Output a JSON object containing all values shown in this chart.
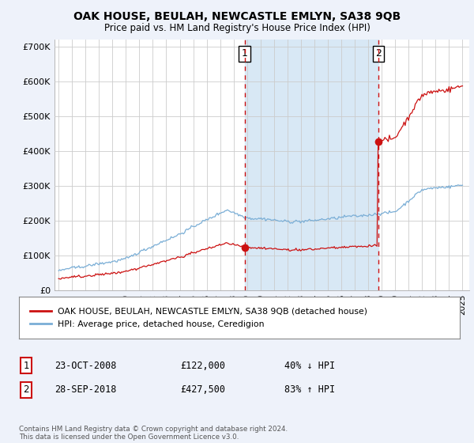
{
  "title": "OAK HOUSE, BEULAH, NEWCASTLE EMLYN, SA38 9QB",
  "subtitle": "Price paid vs. HM Land Registry's House Price Index (HPI)",
  "ylabel_ticks": [
    "£0",
    "£100K",
    "£200K",
    "£300K",
    "£400K",
    "£500K",
    "£600K",
    "£700K"
  ],
  "ytick_values": [
    0,
    100000,
    200000,
    300000,
    400000,
    500000,
    600000,
    700000
  ],
  "ylim": [
    0,
    720000
  ],
  "xlim_start": 1994.7,
  "xlim_end": 2025.5,
  "hpi_color": "#7aaed6",
  "price_color": "#cc1111",
  "vline_color": "#cc1111",
  "shade_color": "#d8e8f5",
  "marker1_date": 2008.81,
  "marker1_price": 122000,
  "marker2_date": 2018.75,
  "marker2_price": 427500,
  "legend_label1": "OAK HOUSE, BEULAH, NEWCASTLE EMLYN, SA38 9QB (detached house)",
  "legend_label2": "HPI: Average price, detached house, Ceredigion",
  "note1_num": "1",
  "note1_date": "23-OCT-2008",
  "note1_price": "£122,000",
  "note1_hpi": "40% ↓ HPI",
  "note2_num": "2",
  "note2_date": "28-SEP-2018",
  "note2_price": "£427,500",
  "note2_hpi": "83% ↑ HPI",
  "footer": "Contains HM Land Registry data © Crown copyright and database right 2024.\nThis data is licensed under the Open Government Licence v3.0.",
  "bg_color": "#eef2fa",
  "plot_bg": "#ffffff",
  "grid_color": "#cccccc"
}
